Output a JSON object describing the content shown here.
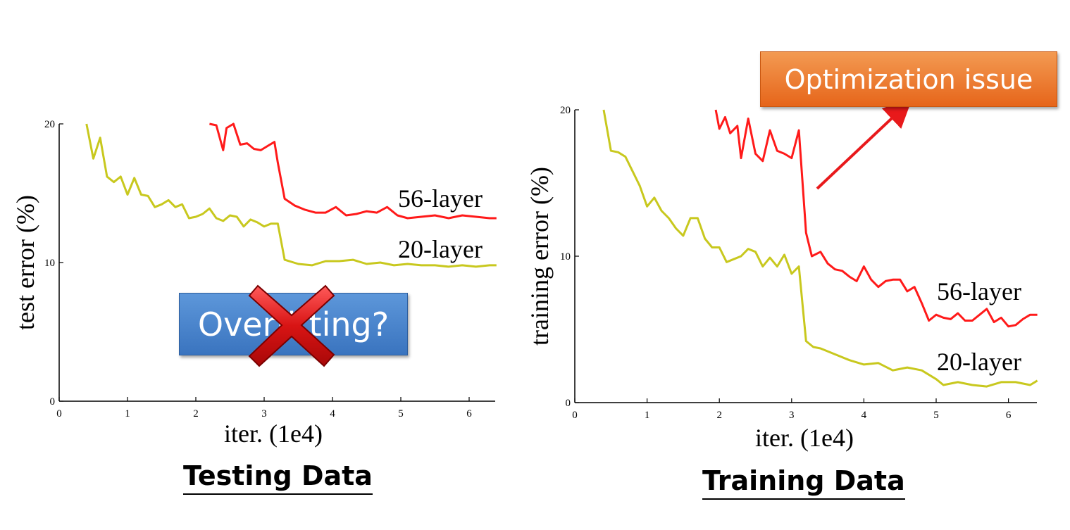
{
  "captions": {
    "left": "Testing Data",
    "right": "Training Data"
  },
  "callouts": {
    "overfitting": "Overfitting?",
    "optimization": "Optimization issue"
  },
  "colors": {
    "layer56": "#ff1a1a",
    "layer20": "#c8c81e",
    "cross": "#cc1010"
  },
  "chart_data": [
    {
      "type": "line",
      "title": "Testing Data",
      "xlabel": "iter. (1e4)",
      "ylabel": "test error (%)",
      "xlim": [
        0,
        6.4
      ],
      "ylim": [
        0,
        20
      ],
      "xticks": [
        0,
        1,
        2,
        3,
        4,
        5,
        6
      ],
      "yticks": [
        0,
        10,
        20
      ],
      "series": [
        {
          "name": "56-layer",
          "x": [
            2.2,
            2.3,
            2.4,
            2.45,
            2.55,
            2.65,
            2.75,
            2.85,
            2.95,
            3.05,
            3.15,
            3.2,
            3.3,
            3.45,
            3.6,
            3.75,
            3.9,
            4.05,
            4.2,
            4.35,
            4.5,
            4.65,
            4.8,
            4.95,
            5.1,
            5.3,
            5.5,
            5.7,
            5.9,
            6.1,
            6.3,
            6.4
          ],
          "y": [
            20.0,
            19.9,
            18.1,
            19.7,
            20.0,
            18.5,
            18.6,
            18.2,
            18.1,
            18.4,
            18.7,
            17.2,
            14.6,
            14.1,
            13.8,
            13.6,
            13.6,
            14.0,
            13.4,
            13.5,
            13.7,
            13.6,
            14.0,
            13.4,
            13.2,
            13.3,
            13.4,
            13.2,
            13.4,
            13.3,
            13.2,
            13.2
          ]
        },
        {
          "name": "20-layer",
          "x": [
            0.4,
            0.5,
            0.6,
            0.7,
            0.8,
            0.9,
            1.0,
            1.1,
            1.2,
            1.3,
            1.4,
            1.5,
            1.6,
            1.7,
            1.8,
            1.9,
            2.0,
            2.1,
            2.2,
            2.3,
            2.4,
            2.5,
            2.6,
            2.7,
            2.8,
            2.9,
            3.0,
            3.1,
            3.2,
            3.3,
            3.5,
            3.7,
            3.9,
            4.1,
            4.3,
            4.5,
            4.7,
            4.9,
            5.1,
            5.3,
            5.5,
            5.7,
            5.9,
            6.1,
            6.3,
            6.4
          ],
          "y": [
            20.0,
            17.5,
            19.0,
            16.2,
            15.8,
            16.2,
            14.9,
            16.1,
            14.9,
            14.8,
            14.0,
            14.2,
            14.5,
            14.0,
            14.2,
            13.2,
            13.3,
            13.5,
            13.9,
            13.2,
            13.0,
            13.4,
            13.3,
            12.6,
            13.1,
            12.9,
            12.6,
            12.8,
            12.8,
            10.2,
            9.9,
            9.8,
            10.1,
            10.1,
            10.2,
            9.9,
            10.0,
            9.8,
            9.9,
            9.8,
            9.8,
            9.7,
            9.8,
            9.7,
            9.8,
            9.8
          ]
        }
      ],
      "line_labels": [
        "56-layer",
        "20-layer"
      ]
    },
    {
      "type": "line",
      "title": "Training Data",
      "xlabel": "iter. (1e4)",
      "ylabel": "training error (%)",
      "xlim": [
        0,
        6.4
      ],
      "ylim": [
        0,
        20
      ],
      "xticks": [
        0,
        1,
        2,
        3,
        4,
        5,
        6
      ],
      "yticks": [
        0,
        10,
        20
      ],
      "series": [
        {
          "name": "56-layer",
          "x": [
            1.95,
            2.0,
            2.08,
            2.15,
            2.25,
            2.3,
            2.4,
            2.5,
            2.6,
            2.7,
            2.8,
            2.9,
            3.0,
            3.1,
            3.2,
            3.28,
            3.4,
            3.5,
            3.6,
            3.7,
            3.8,
            3.9,
            4.0,
            4.1,
            4.2,
            4.3,
            4.4,
            4.5,
            4.6,
            4.7,
            4.8,
            4.9,
            5.0,
            5.1,
            5.2,
            5.3,
            5.4,
            5.5,
            5.6,
            5.7,
            5.8,
            5.9,
            6.0,
            6.1,
            6.2,
            6.3,
            6.4
          ],
          "y": [
            20.0,
            18.7,
            19.5,
            18.4,
            18.9,
            16.7,
            19.4,
            17.0,
            16.5,
            18.6,
            17.2,
            17.0,
            16.7,
            18.6,
            11.6,
            10.0,
            10.3,
            9.5,
            9.1,
            9.0,
            8.6,
            8.3,
            9.3,
            8.4,
            7.9,
            8.3,
            8.4,
            8.4,
            7.6,
            7.9,
            6.8,
            5.6,
            6.0,
            5.8,
            5.7,
            6.1,
            5.6,
            5.6,
            6.0,
            6.4,
            5.5,
            5.8,
            5.2,
            5.3,
            5.7,
            6.0,
            6.0
          ]
        },
        {
          "name": "20-layer",
          "x": [
            0.4,
            0.5,
            0.6,
            0.7,
            0.8,
            0.9,
            1.0,
            1.1,
            1.2,
            1.3,
            1.4,
            1.5,
            1.6,
            1.7,
            1.8,
            1.9,
            2.0,
            2.1,
            2.2,
            2.3,
            2.4,
            2.5,
            2.6,
            2.7,
            2.8,
            2.9,
            3.0,
            3.1,
            3.2,
            3.3,
            3.4,
            3.6,
            3.8,
            4.0,
            4.2,
            4.4,
            4.6,
            4.8,
            5.0,
            5.1,
            5.3,
            5.5,
            5.7,
            5.9,
            6.1,
            6.3,
            6.4
          ],
          "y": [
            20.0,
            17.2,
            17.1,
            16.8,
            15.8,
            14.8,
            13.4,
            14.0,
            13.1,
            12.6,
            11.9,
            11.4,
            12.6,
            12.6,
            11.2,
            10.6,
            10.6,
            9.6,
            9.8,
            10.0,
            10.5,
            10.3,
            9.3,
            9.9,
            9.3,
            10.1,
            8.8,
            9.3,
            4.2,
            3.8,
            3.7,
            3.3,
            2.9,
            2.6,
            2.7,
            2.2,
            2.4,
            2.2,
            1.6,
            1.2,
            1.4,
            1.2,
            1.1,
            1.4,
            1.4,
            1.2,
            1.5
          ]
        }
      ],
      "line_labels": [
        "56-layer",
        "20-layer"
      ]
    }
  ]
}
